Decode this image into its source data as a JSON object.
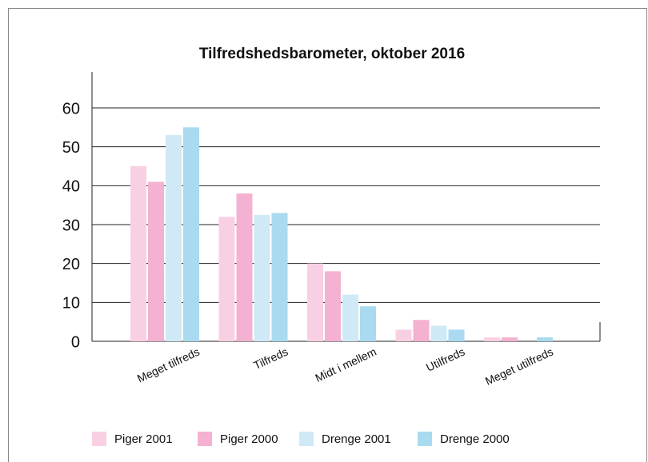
{
  "chart_data": {
    "type": "bar",
    "title": "Tilfredshedsbarometer, oktober 2016",
    "categories": [
      "Meget tilfreds",
      "Tilfreds",
      "Midt i mellem",
      "Utilfreds",
      "Meget utilfreds"
    ],
    "series": [
      {
        "name": "Piger 2001",
        "color": "#f9d0e3",
        "values": [
          45,
          32,
          20,
          3,
          1
        ]
      },
      {
        "name": "Piger 2000",
        "color": "#f4b1d1",
        "values": [
          41,
          38,
          18,
          5.5,
          1
        ]
      },
      {
        "name": "Drenge 2001",
        "color": "#cfe9f6",
        "values": [
          53,
          32.5,
          12,
          4,
          0
        ]
      },
      {
        "name": "Drenge 2000",
        "color": "#a9daf0",
        "values": [
          55,
          33,
          9,
          3,
          1
        ]
      }
    ],
    "ylim": [
      0,
      60
    ],
    "yticks": [
      0,
      10,
      20,
      30,
      40,
      50,
      60
    ],
    "grid": true,
    "legend": "bottom"
  }
}
